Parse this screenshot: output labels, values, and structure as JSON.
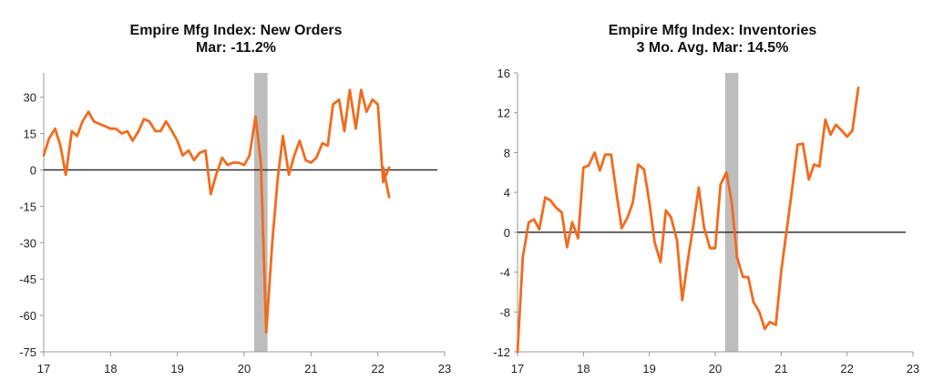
{
  "chart_data": [
    {
      "type": "line",
      "title_line1": "Empire Mfg Index:  New Orders",
      "title_line2": "Mar: -11.2%",
      "xlabel": "",
      "ylabel": "",
      "xlim": [
        2017,
        2023
      ],
      "ylim": [
        -75,
        40
      ],
      "x_ticks": [
        "17",
        "18",
        "19",
        "20",
        "21",
        "22",
        "23"
      ],
      "y_ticks": [
        "30",
        "15",
        "0",
        "-15",
        "-30",
        "-45",
        "-60",
        "-75"
      ],
      "y_tick_values": [
        30,
        15,
        0,
        -15,
        -30,
        -45,
        -60,
        -75
      ],
      "recession": [
        2020.15,
        2020.35
      ],
      "grid": false,
      "line_color": "#f26b1d",
      "recession_color": "#bdbdbd",
      "series": [
        {
          "x": [
            2017.0,
            2017.08,
            2017.17,
            2017.25,
            2017.33,
            2017.42,
            2017.5,
            2017.58,
            2017.67,
            2017.75,
            2017.83,
            2017.92,
            2018.0,
            2018.08,
            2018.17,
            2018.25,
            2018.33,
            2018.42,
            2018.5,
            2018.58,
            2018.67,
            2018.75,
            2018.83,
            2018.92,
            2019.0,
            2019.08,
            2019.17,
            2019.25,
            2019.33,
            2019.42,
            2019.5,
            2019.58,
            2019.67,
            2019.75,
            2019.83,
            2019.92,
            2020.0,
            2020.08,
            2020.17,
            2020.25,
            2020.33,
            2020.42,
            2020.5,
            2020.58,
            2020.67,
            2020.75,
            2020.83,
            2020.92,
            2021.0,
            2021.08,
            2021.17,
            2021.25,
            2021.33,
            2021.42,
            2021.5,
            2021.58,
            2021.67,
            2021.75,
            2021.83,
            2021.92,
            2022.0,
            2022.08,
            2022.17
          ],
          "values": [
            6,
            13,
            17,
            10,
            -2,
            16,
            14,
            20,
            24,
            20,
            19,
            18,
            17,
            17,
            15,
            16,
            12,
            16,
            21,
            20,
            16,
            16,
            20,
            16,
            12,
            6,
            8,
            4,
            7,
            8,
            -10,
            -2,
            5,
            2,
            3,
            3,
            2,
            6,
            22,
            3,
            -67,
            -30,
            -4,
            14,
            -2,
            6,
            12,
            4,
            3,
            5,
            11,
            10,
            27,
            29,
            16,
            33,
            17,
            33,
            24,
            29,
            27,
            -5,
            1
          ]
        },
        {
          "x": [
            2022.08,
            2022.17
          ],
          "values": [
            1,
            -11.2
          ]
        }
      ]
    },
    {
      "type": "line",
      "title_line1": "Empire Mfg Index: Inventories",
      "title_line2": "3 Mo. Avg.  Mar: 14.5%",
      "xlabel": "",
      "ylabel": "",
      "xlim": [
        2017,
        2023
      ],
      "ylim": [
        -12,
        16
      ],
      "x_ticks": [
        "17",
        "18",
        "19",
        "20",
        "21",
        "22",
        "23"
      ],
      "y_ticks": [
        "16",
        "12",
        "8",
        "4",
        "0",
        "-4",
        "-8",
        "-12"
      ],
      "y_tick_values": [
        16,
        12,
        8,
        4,
        0,
        -4,
        -8,
        -12
      ],
      "recession": [
        2020.15,
        2020.35
      ],
      "grid": false,
      "line_color": "#f26b1d",
      "recession_color": "#bdbdbd",
      "series": [
        {
          "x": [
            2017.0,
            2017.08,
            2017.17,
            2017.25,
            2017.33,
            2017.42,
            2017.5,
            2017.58,
            2017.67,
            2017.75,
            2017.83,
            2017.92,
            2018.0,
            2018.08,
            2018.17,
            2018.25,
            2018.33,
            2018.42,
            2018.5,
            2018.58,
            2018.67,
            2018.75,
            2018.83,
            2018.92,
            2019.0,
            2019.08,
            2019.17,
            2019.25,
            2019.33,
            2019.42,
            2019.5,
            2019.58,
            2019.67,
            2019.75,
            2019.83,
            2019.92,
            2020.0,
            2020.08,
            2020.17,
            2020.25,
            2020.33,
            2020.42,
            2020.5,
            2020.58,
            2020.67,
            2020.75,
            2020.83,
            2020.92,
            2021.0,
            2021.08,
            2021.17,
            2021.25,
            2021.33,
            2021.42,
            2021.5,
            2021.58,
            2021.67,
            2021.75,
            2021.83,
            2021.92,
            2022.0,
            2022.08,
            2022.17
          ],
          "values": [
            -12,
            -2.5,
            1,
            1.3,
            0.3,
            3.5,
            3.2,
            2.5,
            2.0,
            -1.5,
            1.0,
            -0.6,
            6.5,
            6.7,
            8.0,
            6.2,
            7.8,
            7.8,
            4.0,
            0.4,
            1.5,
            3.0,
            6.8,
            6.3,
            3.0,
            -1.0,
            -3.0,
            2.2,
            1.5,
            -0.8,
            -6.8,
            -3.0,
            0.8,
            4.5,
            0.5,
            -1.6,
            -1.6,
            4.8,
            6.0,
            3.0,
            -2.5,
            -4.5,
            -4.5,
            -7.0,
            -8.0,
            -9.7,
            -9.0,
            -9.3,
            -4.0,
            0.0,
            4.5,
            8.8,
            8.9,
            5.3,
            6.8,
            6.6,
            11.3,
            9.8,
            10.8,
            10.2,
            9.6,
            10.2,
            14.5
          ]
        }
      ]
    }
  ]
}
